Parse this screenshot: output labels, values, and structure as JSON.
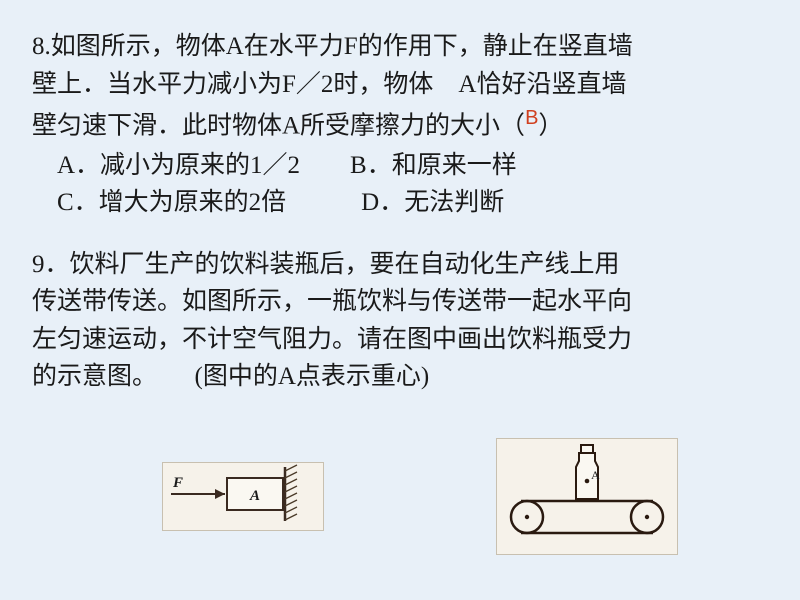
{
  "q8": {
    "line1": "8.如图所示，物体A在水平力F的作用下，静止在竖直墙",
    "line2": "壁上．当水平力减小为F／2时，物体　A恰好沿竖直墙",
    "line3_pre": "壁匀速下滑．此时物体A所受摩擦力的大小（",
    "answer": "B",
    "line3_post": "）",
    "optA": "　A．减小为原来的1／2　　B．和原来一样",
    "optC": "　C．增大为原来的2倍　　　D．无法判断"
  },
  "q9": {
    "line1": "9．饮料厂生产的饮料装瓶后，要在自动化生产线上用",
    "line2": "传送带传送。如图所示，一瓶饮料与传送带一起水平向",
    "line3": "左匀速运动，不计空气阻力。请在图中画出饮料瓶受力",
    "line4": "的示意图。　　(图中的A点表示重心)"
  },
  "fig1": {
    "F_label": "F",
    "A_label": "A",
    "line_color": "#3a2a20",
    "fill_color": "#faf8f2",
    "hatch_color": "#4a3a28",
    "width": 160,
    "height": 62
  },
  "fig2": {
    "A_label": "A",
    "line_color": "#2a1a10",
    "fill_color": "#faf8f2",
    "width": 180,
    "height": 110
  }
}
